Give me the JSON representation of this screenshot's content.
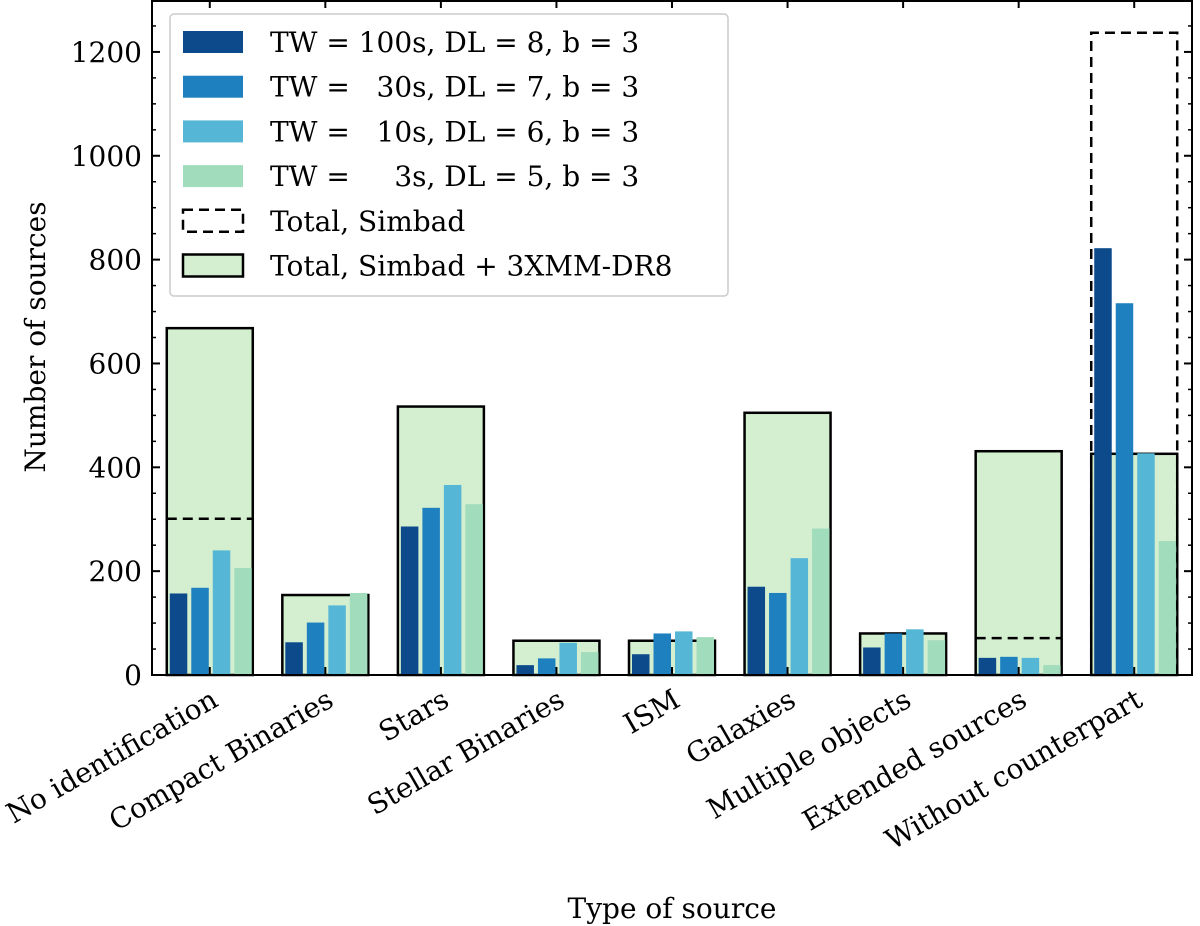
{
  "chart_data": {
    "type": "bar",
    "xlabel": "Type of source",
    "ylabel": "Number of sources",
    "ylim": [
      0,
      1300
    ],
    "yticks": [
      0,
      200,
      400,
      600,
      800,
      1000,
      1200
    ],
    "categories": [
      "No identification",
      "Compact Binaries",
      "Stars",
      "Stellar Binaries",
      "ISM",
      "Galaxies",
      "Multiple objects",
      "Extended sources",
      "Without counterpart"
    ],
    "series": [
      {
        "name": "TW = 100s, DL = 8, b = 3",
        "color": "#0c4a8c",
        "values": [
          157,
          63,
          286,
          19,
          40,
          170,
          53,
          33,
          822
        ]
      },
      {
        "name": "TW =   30s, DL = 7, b = 3",
        "color": "#1f80bf",
        "values": [
          168,
          101,
          322,
          32,
          80,
          158,
          80,
          35,
          716
        ]
      },
      {
        "name": "TW =   10s, DL = 6, b = 3",
        "color": "#56b6d6",
        "values": [
          240,
          134,
          366,
          62,
          84,
          225,
          88,
          33,
          427
        ]
      },
      {
        "name": "TW =     3s, DL = 5, b = 3",
        "color": "#a1dcbc",
        "values": [
          206,
          158,
          329,
          44,
          73,
          282,
          67,
          19,
          258
        ]
      }
    ],
    "totals": {
      "simbad": {
        "name": "Total, Simbad",
        "values": [
          301,
          null,
          null,
          null,
          null,
          null,
          null,
          71,
          1237
        ]
      },
      "simbad_3xmm": {
        "name": "Total, Simbad + 3XMM-DR8",
        "fill": "#d3efd0",
        "values": [
          668,
          154,
          517,
          66,
          66,
          505,
          80,
          431,
          426
        ]
      }
    },
    "legend_position": "top-left"
  }
}
